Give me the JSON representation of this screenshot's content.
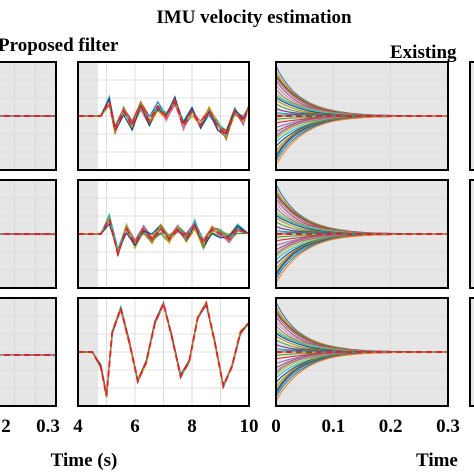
{
  "title": "IMU velocity estimation",
  "group_labels": {
    "left": "Proposed filter",
    "right": "Existing"
  },
  "x_axis_labels": {
    "left": "Time (s)",
    "right": "Time"
  },
  "colors": {
    "reference": "#e0242f",
    "shade": "#e6e6e6",
    "grid": "#d6d6d6",
    "axis": "#000000",
    "ensemble": [
      "#1f77b4",
      "#ff7f0e",
      "#2ca02c",
      "#d62728",
      "#9467bd",
      "#8c564b",
      "#e377c2",
      "#7f7f7f",
      "#bcbd22",
      "#17becf",
      "#0a3d91",
      "#c48a00",
      "#4b9c2f",
      "#7a1f9c",
      "#1a9e8f"
    ]
  },
  "chart_data": [
    {
      "panel": "proposed-zoom",
      "type": "line",
      "visible_xticks": [
        "2",
        "0.3"
      ],
      "series_desc": "ensemble estimates converge immediately onto red dashed reference (flat)"
    },
    {
      "panel": "proposed-full",
      "type": "line",
      "xlim": [
        4,
        10
      ],
      "xticks": [
        "4",
        "6",
        "8",
        "10"
      ],
      "shaded_until": 4.7,
      "rows": [
        {
          "reference": [
            [
              4.0,
              0
            ],
            [
              4.8,
              0
            ],
            [
              5.1,
              0.3
            ],
            [
              5.3,
              -0.3
            ],
            [
              5.6,
              0.1
            ],
            [
              5.9,
              -0.2
            ],
            [
              6.2,
              0.2
            ],
            [
              6.5,
              -0.1
            ],
            [
              6.8,
              0.2
            ],
            [
              7.1,
              0
            ],
            [
              7.4,
              0.3
            ],
            [
              7.7,
              -0.2
            ],
            [
              8.0,
              0.1
            ],
            [
              8.3,
              -0.2
            ],
            [
              8.6,
              0.1
            ],
            [
              8.9,
              -0.2
            ],
            [
              9.2,
              -0.4
            ],
            [
              9.5,
              0.1
            ],
            [
              9.8,
              -0.1
            ],
            [
              10.0,
              0.2
            ]
          ]
        },
        {
          "reference": [
            [
              4.0,
              0
            ],
            [
              4.8,
              0
            ],
            [
              5.1,
              0.3
            ],
            [
              5.4,
              -0.4
            ],
            [
              5.7,
              0.1
            ],
            [
              6.0,
              -0.2
            ],
            [
              6.3,
              0.1
            ],
            [
              6.6,
              -0.1
            ],
            [
              6.9,
              0.1
            ],
            [
              7.2,
              -0.1
            ],
            [
              7.5,
              0.1
            ],
            [
              7.8,
              -0.1
            ],
            [
              8.1,
              0.2
            ],
            [
              8.4,
              -0.2
            ],
            [
              8.7,
              0.1
            ],
            [
              9.0,
              0
            ],
            [
              9.3,
              -0.1
            ],
            [
              9.6,
              0.1
            ],
            [
              10.0,
              0
            ]
          ]
        },
        {
          "reference": [
            [
              4.0,
              0
            ],
            [
              4.5,
              0
            ],
            [
              4.8,
              -0.3
            ],
            [
              5.0,
              -0.9
            ],
            [
              5.2,
              0.4
            ],
            [
              5.5,
              0.9
            ],
            [
              5.8,
              0.2
            ],
            [
              6.1,
              -0.6
            ],
            [
              6.4,
              -0.2
            ],
            [
              6.7,
              0.6
            ],
            [
              7.0,
              1.0
            ],
            [
              7.3,
              0.3
            ],
            [
              7.6,
              -0.5
            ],
            [
              7.9,
              -0.2
            ],
            [
              8.2,
              0.7
            ],
            [
              8.5,
              1.0
            ],
            [
              8.8,
              0.2
            ],
            [
              9.1,
              -0.7
            ],
            [
              9.4,
              -0.3
            ],
            [
              9.7,
              0.4
            ],
            [
              10.0,
              0.6
            ]
          ]
        }
      ]
    },
    {
      "panel": "existing-zoom",
      "type": "line",
      "xlim": [
        0,
        0.3
      ],
      "xticks": [
        "0",
        "0.1",
        "0.2",
        "0.3"
      ],
      "series_desc": "many ensemble estimates start spread out and converge to reference by about 0.2 s"
    }
  ]
}
